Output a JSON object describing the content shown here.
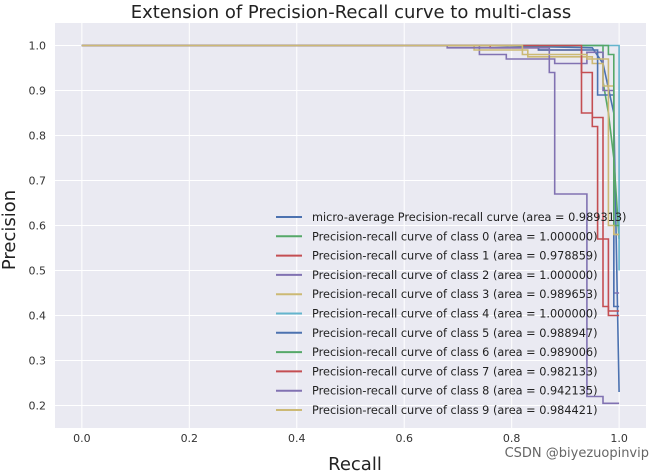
{
  "chart_data": {
    "type": "line",
    "title": "Extension of Precision-Recall curve to multi-class",
    "xlabel": "Recall",
    "ylabel": "Precision",
    "xlim": [
      -0.05,
      1.05
    ],
    "ylim": [
      0.15,
      1.05
    ],
    "xticks": [
      0.0,
      0.2,
      0.4,
      0.6,
      0.8,
      1.0
    ],
    "xtick_labels": [
      "0.0",
      "0.2",
      "0.4",
      "0.6",
      "0.8",
      "1.0"
    ],
    "yticks": [
      0.2,
      0.3,
      0.4,
      0.5,
      0.6,
      0.7,
      0.8,
      0.9,
      1.0
    ],
    "ytick_labels": [
      "0.2",
      "0.3",
      "0.4",
      "0.5",
      "0.6",
      "0.7",
      "0.8",
      "0.9",
      "1.0"
    ],
    "grid": true,
    "legend_position": "lower-right",
    "series": [
      {
        "name": "micro-average Precision-recall curve (area = 0.989313)",
        "color": "#4C72B0",
        "x": [
          0.0,
          0.75,
          0.95,
          0.97,
          0.99,
          1.0
        ],
        "y": [
          1.0,
          1.0,
          0.995,
          0.96,
          0.85,
          0.23
        ]
      },
      {
        "name": "Precision-recall curve of class 0 (area = 1.000000)",
        "color": "#55A868",
        "x": [
          0.0,
          0.97,
          0.97,
          0.98,
          0.99,
          1.0
        ],
        "y": [
          1.0,
          1.0,
          0.92,
          0.85,
          0.75,
          0.57
        ]
      },
      {
        "name": "Precision-recall curve of class 1 (area = 0.978859)",
        "color": "#C44E52",
        "x": [
          0.0,
          0.76,
          0.76,
          0.85,
          0.85,
          0.93,
          0.93,
          0.95,
          0.95,
          0.96,
          0.96,
          0.98,
          0.98,
          1.0
        ],
        "y": [
          1.0,
          1.0,
          0.995,
          0.995,
          0.99,
          0.99,
          0.85,
          0.85,
          0.82,
          0.82,
          0.57,
          0.57,
          0.41,
          0.41
        ]
      },
      {
        "name": "Precision-recall curve of class 2 (area = 1.000000)",
        "color": "#8172B2",
        "x": [
          0.0,
          0.74,
          0.74,
          0.79,
          0.79,
          0.88,
          0.88,
          0.94,
          0.94,
          0.97,
          0.97,
          0.99,
          0.99,
          1.0
        ],
        "y": [
          1.0,
          1.0,
          0.98,
          0.98,
          0.97,
          0.97,
          0.96,
          0.96,
          0.985,
          0.985,
          0.9,
          0.9,
          0.45,
          0.45
        ]
      },
      {
        "name": "Precision-recall curve of class 3 (area = 0.989653)",
        "color": "#CCB974",
        "x": [
          0.0,
          0.73,
          0.73,
          0.83,
          0.83,
          0.95,
          0.95,
          0.97,
          0.97,
          0.99,
          0.99,
          1.0
        ],
        "y": [
          1.0,
          1.0,
          0.99,
          0.99,
          0.975,
          0.975,
          0.96,
          0.96,
          0.91,
          0.91,
          0.58,
          0.58
        ]
      },
      {
        "name": "Precision-recall curve of class 4 (area = 1.000000)",
        "color": "#64B5CD",
        "x": [
          0.0,
          1.0,
          1.0
        ],
        "y": [
          1.0,
          1.0,
          0.5
        ]
      },
      {
        "name": "Precision-recall curve of class 5 (area = 0.988947)",
        "color": "#4C72B0",
        "x": [
          0.0,
          0.85,
          0.85,
          0.96,
          0.96,
          0.99,
          0.99,
          1.0
        ],
        "y": [
          1.0,
          1.0,
          0.99,
          0.99,
          0.89,
          0.89,
          0.42,
          0.42
        ]
      },
      {
        "name": "Precision-recall curve of class 6 (area = 0.989006)",
        "color": "#55A868",
        "x": [
          0.0,
          0.98,
          0.98,
          0.99,
          0.99,
          1.0
        ],
        "y": [
          1.0,
          1.0,
          0.98,
          0.98,
          0.6,
          0.6
        ]
      },
      {
        "name": "Precision-recall curve of class 7 (area = 0.982133)",
        "color": "#C44E52",
        "x": [
          0.0,
          0.93,
          0.93,
          0.95,
          0.95,
          0.97,
          0.97,
          0.98,
          0.98,
          1.0
        ],
        "y": [
          1.0,
          1.0,
          0.94,
          0.94,
          0.84,
          0.84,
          0.42,
          0.42,
          0.4,
          0.4
        ]
      },
      {
        "name": "Precision-recall curve of class 8 (area = 0.942135)",
        "color": "#8172B2",
        "x": [
          0.0,
          0.68,
          0.68,
          0.87,
          0.87,
          0.88,
          0.88,
          0.94,
          0.94,
          0.97,
          0.97,
          0.98,
          0.98,
          1.0
        ],
        "y": [
          1.0,
          1.0,
          0.995,
          0.995,
          0.94,
          0.94,
          0.67,
          0.67,
          0.22,
          0.22,
          0.205,
          0.205,
          0.205,
          0.205
        ]
      },
      {
        "name": "Precision-recall curve of class 9 (area = 0.984421)",
        "color": "#CCB974",
        "x": [
          0.0,
          0.82,
          0.82,
          0.94,
          0.94,
          0.98,
          0.98,
          0.99,
          0.99,
          1.0
        ],
        "y": [
          1.0,
          1.0,
          0.98,
          0.98,
          0.97,
          0.97,
          0.6,
          0.6,
          0.58,
          0.58
        ]
      }
    ]
  },
  "watermark": "CSDN @biyezuopinvip"
}
